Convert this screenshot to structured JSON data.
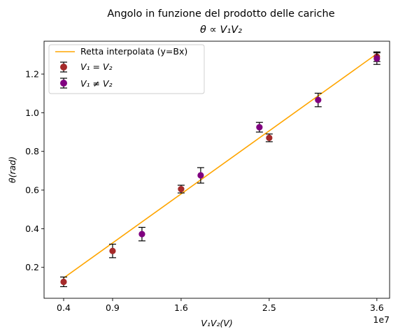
{
  "chart_data": {
    "type": "scatter",
    "title": "Angolo in funzione del prodotto delle cariche",
    "subtitle": "θ ∝ V₁V₂",
    "xlabel": "V₁V₂(V)",
    "ylabel": "θ(rad)",
    "x_offset_label": "1e7",
    "xlim": [
      2000000,
      37300000
    ],
    "ylim": [
      0.04,
      1.37
    ],
    "x_ticks": [
      4000000,
      9000000,
      16000000,
      25000000,
      36000000
    ],
    "x_tick_labels": [
      "0.4",
      "0.9",
      "1.6",
      "2.5",
      "3.6"
    ],
    "y_ticks": [
      0.2,
      0.4,
      0.6,
      0.8,
      1.0,
      1.2
    ],
    "y_tick_labels": [
      "0.2",
      "0.4",
      "0.6",
      "0.8",
      "1.0",
      "1.2"
    ],
    "grid": false,
    "legend_position": "top-left",
    "fit": {
      "name": "Retta interpolata (y=Bx)",
      "color": "#ffa500",
      "x": [
        4000000,
        36000000
      ],
      "y": [
        0.145,
        1.305
      ]
    },
    "series": [
      {
        "name": "V₁ = V₂",
        "color": "#a52a2a",
        "x": [
          4000000,
          9000000,
          16000000,
          25000000,
          36000000
        ],
        "y": [
          0.125,
          0.285,
          0.605,
          0.87,
          1.29
        ],
        "err": [
          0.025,
          0.035,
          0.02,
          0.02,
          0.025
        ]
      },
      {
        "name": "V₁ ≠ V₂",
        "color": "#800080",
        "x": [
          12000000,
          18000000,
          24000000,
          30000000,
          36000000
        ],
        "y": [
          0.372,
          0.676,
          0.925,
          1.066,
          1.28
        ],
        "err": [
          0.035,
          0.04,
          0.025,
          0.035,
          0.03
        ]
      }
    ]
  }
}
